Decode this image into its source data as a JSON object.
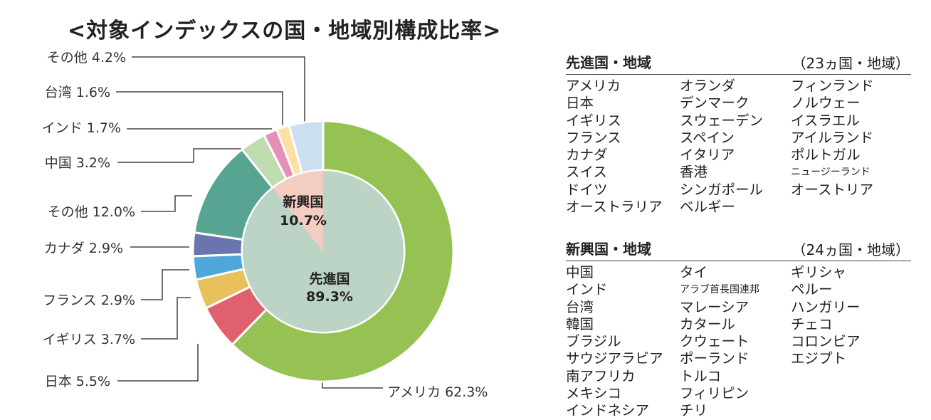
{
  "title": "<対象インデックスの国・地域別構成比率>",
  "colors": {
    "developed_inner": "#bcd4c5",
    "emerging_inner": "#f3cdbf",
    "leader": "#222222"
  },
  "chart_data": {
    "type": "pie",
    "inner": [
      {
        "name": "先進国",
        "value": 89.3,
        "label": "89.3%"
      },
      {
        "name": "新興国",
        "value": 10.7,
        "label": "10.7%"
      }
    ],
    "outer": [
      {
        "name": "アメリカ",
        "value": 62.3,
        "label": "アメリカ 62.3%",
        "color": "#96c253"
      },
      {
        "name": "日本",
        "value": 5.5,
        "label": "日本 5.5%",
        "color": "#df606e"
      },
      {
        "name": "イギリス",
        "value": 3.7,
        "label": "イギリス 3.7%",
        "color": "#e8c05c"
      },
      {
        "name": "フランス",
        "value": 2.9,
        "label": "フランス 2.9%",
        "color": "#4fa6db"
      },
      {
        "name": "カナダ",
        "value": 2.9,
        "label": "カナダ 2.9%",
        "color": "#6b75ad"
      },
      {
        "name": "その他",
        "value": 12.0,
        "label": "その他 12.0%",
        "color": "#58a493"
      },
      {
        "name": "中国",
        "value": 3.2,
        "label": "中国 3.2%",
        "color": "#bfdcb0"
      },
      {
        "name": "インド",
        "value": 1.7,
        "label": "インド 1.7%",
        "color": "#e58fb8"
      },
      {
        "name": "台湾",
        "value": 1.6,
        "label": "台湾 1.6%",
        "color": "#fce1a3"
      },
      {
        "name": "その他",
        "value": 4.2,
        "label": "その他 4.2%",
        "color": "#cbdff0"
      }
    ]
  },
  "developed": {
    "title": "先進国・地域",
    "count": "（23ヵ国・地域）",
    "columns": [
      [
        "アメリカ",
        "日本",
        "イギリス",
        "フランス",
        "カナダ",
        "スイス",
        "ドイツ",
        "オーストラリア"
      ],
      [
        "オランダ",
        "デンマーク",
        "スウェーデン",
        "スペイン",
        "イタリア",
        "香港",
        "シンガポール",
        "ベルギー"
      ],
      [
        "フィンランド",
        "ノルウェー",
        "イスラエル",
        "アイルランド",
        "ポルトガル",
        "ニュージーランド",
        "オーストリア"
      ]
    ]
  },
  "emerging": {
    "title": "新興国・地域",
    "count": "（24ヵ国・地域）",
    "columns": [
      [
        "中国",
        "インド",
        "台湾",
        "韓国",
        "ブラジル",
        "サウジアラビア",
        "南アフリカ",
        "メキシコ",
        "インドネシア"
      ],
      [
        "タイ",
        "アラブ首長国連邦",
        "マレーシア",
        "カタール",
        "クウェート",
        "ポーランド",
        "トルコ",
        "フィリピン",
        "チリ"
      ],
      [
        "ギリシャ",
        "ペルー",
        "ハンガリー",
        "チェコ",
        "コロンビア",
        "エジプト"
      ]
    ]
  }
}
